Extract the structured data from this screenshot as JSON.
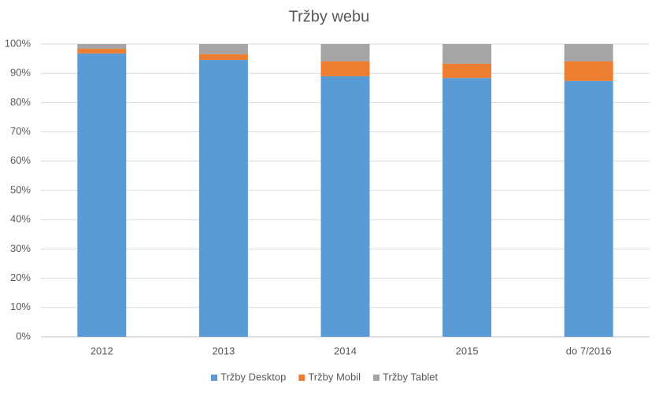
{
  "chart_data": {
    "type": "stacked_bar",
    "title": "Tržby webu",
    "categories": [
      "2012",
      "2013",
      "2014",
      "2015",
      "do 7/2016"
    ],
    "series": [
      {
        "name": "Tržby Desktop",
        "color": "#5b9bd5",
        "values": [
          96.8,
          94.6,
          89.0,
          88.4,
          87.4
        ]
      },
      {
        "name": "Tržby Mobil",
        "color": "#ed7d31",
        "values": [
          1.6,
          1.9,
          5.1,
          4.9,
          6.7
        ]
      },
      {
        "name": "Tržby Tablet",
        "color": "#a5a5a5",
        "values": [
          1.6,
          3.5,
          5.9,
          6.7,
          5.9
        ]
      }
    ],
    "ylim": [
      0,
      100
    ],
    "yticks": [
      {
        "value": 0,
        "label": "0%"
      },
      {
        "value": 10,
        "label": "10%"
      },
      {
        "value": 20,
        "label": "20%"
      },
      {
        "value": 30,
        "label": "30%"
      },
      {
        "value": 40,
        "label": "40%"
      },
      {
        "value": 50,
        "label": "50%"
      },
      {
        "value": 60,
        "label": "60%"
      },
      {
        "value": 70,
        "label": "70%"
      },
      {
        "value": 80,
        "label": "80%"
      },
      {
        "value": 90,
        "label": "90%"
      },
      {
        "value": 100,
        "label": "100%"
      }
    ],
    "grid": true,
    "legend": "bottom"
  }
}
